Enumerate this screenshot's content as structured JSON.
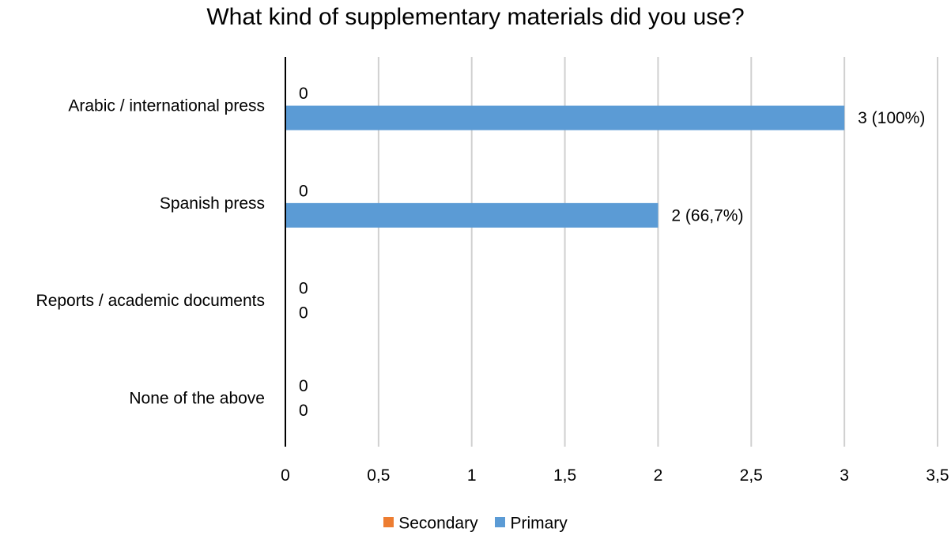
{
  "chart_data": {
    "type": "bar",
    "orientation": "horizontal",
    "title": "What kind of supplementary materials did you use?",
    "categories": [
      "Arabic / international press",
      "Spanish press",
      "Reports / academic documents",
      "None of the above"
    ],
    "series": [
      {
        "name": "Secondary",
        "color": "#ED7D31",
        "values": [
          0,
          0,
          0,
          0
        ],
        "labels": [
          "0",
          "0",
          "0",
          "0"
        ]
      },
      {
        "name": "Primary",
        "color": "#5B9BD5",
        "values": [
          3,
          2,
          0,
          0
        ],
        "labels": [
          "3 (100%)",
          "2 (66,7%)",
          "0",
          "0"
        ]
      }
    ],
    "xlim": [
      0,
      3.5
    ],
    "xticks": [
      0,
      0.5,
      1,
      1.5,
      2,
      2.5,
      3,
      3.5
    ],
    "xtick_labels": [
      "0",
      "0,5",
      "1",
      "1,5",
      "2",
      "2,5",
      "3",
      "3,5"
    ],
    "grid": "vertical",
    "legend_position": "bottom",
    "gridline_color": "#D0D0D0",
    "axis_color": "#000000"
  }
}
